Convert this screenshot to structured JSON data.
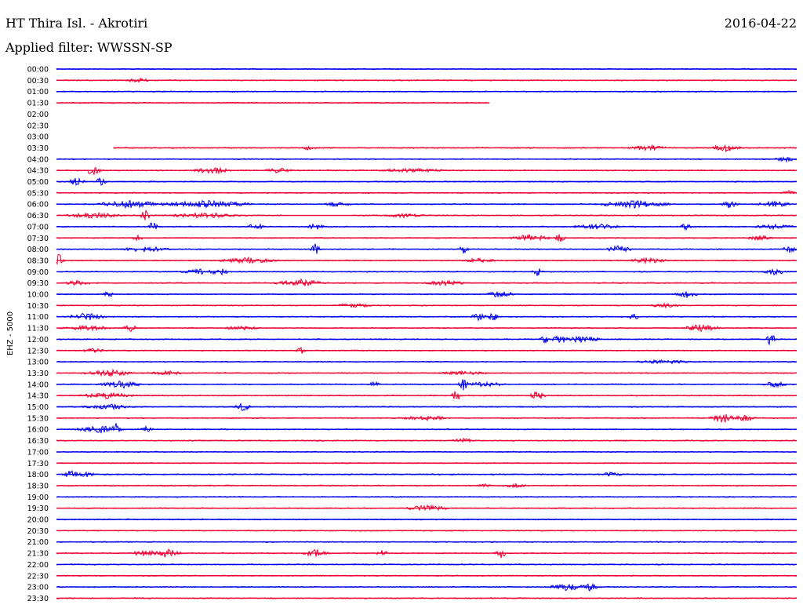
{
  "header": {
    "station": "HT Thira Isl. - Akrotiri",
    "date": "2016-04-22",
    "filter": "Applied filter: WWSSN-SP"
  },
  "chart_data": {
    "type": "line",
    "title": "HT Thira Isl. - Akrotiri",
    "ylabel": "EHZ - 5000",
    "colors": {
      "even": "#0000ee",
      "odd": "#ee0033"
    },
    "rows": [
      {
        "label": "00:00",
        "start": 0.0,
        "end": 1.0,
        "bursts": []
      },
      {
        "label": "00:30",
        "start": 0.0,
        "end": 1.0,
        "bursts": [
          [
            0.11,
            0.02,
            3
          ]
        ]
      },
      {
        "label": "01:00",
        "start": 0.0,
        "end": 1.0,
        "bursts": []
      },
      {
        "label": "01:30",
        "start": 0.0,
        "end": 0.585,
        "bursts": []
      },
      {
        "label": "02:00",
        "start": 0.0,
        "end": 0.0,
        "bursts": []
      },
      {
        "label": "02:30",
        "start": 0.0,
        "end": 0.0,
        "bursts": []
      },
      {
        "label": "03:00",
        "start": 0.0,
        "end": 0.0,
        "bursts": []
      },
      {
        "label": "03:30",
        "start": 0.077,
        "end": 1.0,
        "bursts": [
          [
            0.34,
            0.01,
            3
          ],
          [
            0.8,
            0.03,
            4
          ],
          [
            0.905,
            0.02,
            6
          ]
        ]
      },
      {
        "label": "04:00",
        "start": 0.0,
        "end": 1.0,
        "bursts": [
          [
            0.985,
            0.015,
            4
          ]
        ]
      },
      {
        "label": "04:30",
        "start": 0.0,
        "end": 1.0,
        "bursts": [
          [
            0.05,
            0.008,
            9
          ],
          [
            0.21,
            0.03,
            5
          ],
          [
            0.3,
            0.02,
            4
          ],
          [
            0.48,
            0.06,
            3
          ]
        ]
      },
      {
        "label": "05:00",
        "start": 0.0,
        "end": 1.0,
        "bursts": [
          [
            0.027,
            0.01,
            6
          ],
          [
            0.06,
            0.005,
            8
          ]
        ]
      },
      {
        "label": "05:30",
        "start": 0.0,
        "end": 1.0,
        "bursts": [
          [
            0.99,
            0.01,
            4
          ]
        ]
      },
      {
        "label": "06:00",
        "start": 0.0,
        "end": 1.0,
        "bursts": [
          [
            0.1,
            0.06,
            5
          ],
          [
            0.2,
            0.08,
            5
          ],
          [
            0.38,
            0.02,
            4
          ],
          [
            0.78,
            0.06,
            5
          ],
          [
            0.91,
            0.01,
            6
          ],
          [
            0.97,
            0.03,
            4
          ]
        ]
      },
      {
        "label": "06:30",
        "start": 0.0,
        "end": 1.0,
        "bursts": [
          [
            0.05,
            0.05,
            4
          ],
          [
            0.12,
            0.005,
            8
          ],
          [
            0.2,
            0.06,
            4
          ],
          [
            0.47,
            0.04,
            3
          ]
        ],
        "gaps": [
          [
            0.305,
            0.4
          ]
        ]
      },
      {
        "label": "07:00",
        "start": 0.0,
        "end": 1.0,
        "bursts": [
          [
            0.13,
            0.005,
            7
          ],
          [
            0.27,
            0.01,
            6
          ],
          [
            0.35,
            0.01,
            5
          ],
          [
            0.73,
            0.04,
            4
          ],
          [
            0.85,
            0.005,
            7
          ],
          [
            0.97,
            0.03,
            4
          ]
        ]
      },
      {
        "label": "07:30",
        "start": 0.0,
        "end": 1.0,
        "bursts": [
          [
            0.11,
            0.005,
            5
          ],
          [
            0.64,
            0.03,
            5
          ],
          [
            0.68,
            0.005,
            6
          ],
          [
            0.95,
            0.02,
            4
          ]
        ]
      },
      {
        "label": "08:00",
        "start": 0.0,
        "end": 1.0,
        "bursts": [
          [
            0.12,
            0.04,
            4
          ],
          [
            0.35,
            0.005,
            8
          ],
          [
            0.55,
            0.005,
            6
          ],
          [
            0.76,
            0.02,
            5
          ],
          [
            0.99,
            0.01,
            5
          ]
        ]
      },
      {
        "label": "08:30",
        "start": 0.0,
        "end": 1.0,
        "bursts": [
          [
            0.003,
            0.005,
            9
          ],
          [
            0.26,
            0.05,
            4
          ],
          [
            0.57,
            0.03,
            3
          ],
          [
            0.8,
            0.03,
            4
          ]
        ]
      },
      {
        "label": "09:00",
        "start": 0.0,
        "end": 1.0,
        "bursts": [
          [
            0.2,
            0.04,
            4
          ],
          [
            0.225,
            0.005,
            7
          ],
          [
            0.65,
            0.005,
            6
          ],
          [
            0.97,
            0.02,
            4
          ]
        ]
      },
      {
        "label": "09:30",
        "start": 0.0,
        "end": 1.0,
        "bursts": [
          [
            0.03,
            0.02,
            4
          ],
          [
            0.33,
            0.04,
            5
          ],
          [
            0.525,
            0.03,
            4
          ]
        ]
      },
      {
        "label": "10:00",
        "start": 0.0,
        "end": 1.0,
        "bursts": [
          [
            0.07,
            0.005,
            5
          ],
          [
            0.6,
            0.02,
            5
          ],
          [
            0.85,
            0.02,
            5
          ]
        ]
      },
      {
        "label": "10:30",
        "start": 0.0,
        "end": 1.0,
        "bursts": [
          [
            0.4,
            0.04,
            3
          ],
          [
            0.82,
            0.03,
            3
          ]
        ]
      },
      {
        "label": "11:00",
        "start": 0.0,
        "end": 1.0,
        "bursts": [
          [
            0.04,
            0.03,
            5
          ],
          [
            0.57,
            0.01,
            5
          ],
          [
            0.59,
            0.005,
            6
          ],
          [
            0.78,
            0.005,
            5
          ]
        ]
      },
      {
        "label": "11:30",
        "start": 0.0,
        "end": 1.0,
        "bursts": [
          [
            0.04,
            0.04,
            4
          ],
          [
            0.1,
            0.01,
            5
          ],
          [
            0.25,
            0.03,
            3
          ],
          [
            0.87,
            0.03,
            5
          ]
        ]
      },
      {
        "label": "12:00",
        "start": 0.0,
        "end": 1.0,
        "bursts": [
          [
            0.66,
            0.005,
            6
          ],
          [
            0.68,
            0.01,
            8
          ],
          [
            0.71,
            0.03,
            5
          ],
          [
            0.965,
            0.005,
            9
          ]
        ]
      },
      {
        "label": "12:30",
        "start": 0.0,
        "end": 1.0,
        "bursts": [
          [
            0.05,
            0.02,
            3
          ],
          [
            0.33,
            0.005,
            5
          ]
        ]
      },
      {
        "label": "13:00",
        "start": 0.0,
        "end": 1.0,
        "bursts": [
          [
            0.82,
            0.05,
            3
          ]
        ]
      },
      {
        "label": "13:30",
        "start": 0.0,
        "end": 1.0,
        "bursts": [
          [
            0.07,
            0.04,
            5
          ],
          [
            0.15,
            0.03,
            3
          ],
          [
            0.55,
            0.04,
            3
          ]
        ]
      },
      {
        "label": "14:00",
        "start": 0.0,
        "end": 1.0,
        "bursts": [
          [
            0.09,
            0.04,
            5
          ],
          [
            0.43,
            0.005,
            5
          ],
          [
            0.55,
            0.005,
            8
          ],
          [
            0.58,
            0.03,
            4
          ],
          [
            0.97,
            0.02,
            4
          ]
        ],
        "gaps": [
          [
            0.935,
            0.945
          ]
        ]
      },
      {
        "label": "14:30",
        "start": 0.0,
        "end": 1.0,
        "bursts": [
          [
            0.07,
            0.05,
            4
          ],
          [
            0.54,
            0.005,
            8
          ],
          [
            0.65,
            0.01,
            6
          ]
        ]
      },
      {
        "label": "15:00",
        "start": 0.0,
        "end": 1.0,
        "bursts": [
          [
            0.07,
            0.04,
            4
          ],
          [
            0.25,
            0.01,
            7
          ]
        ]
      },
      {
        "label": "15:30",
        "start": 0.0,
        "end": 1.0,
        "bursts": [
          [
            0.5,
            0.05,
            3
          ],
          [
            0.9,
            0.02,
            6
          ],
          [
            0.93,
            0.02,
            4
          ]
        ]
      },
      {
        "label": "16:00",
        "start": 0.0,
        "end": 1.0,
        "bursts": [
          [
            0.06,
            0.04,
            5
          ],
          [
            0.08,
            0.005,
            9
          ],
          [
            0.12,
            0.01,
            4
          ]
        ]
      },
      {
        "label": "16:30",
        "start": 0.0,
        "end": 1.0,
        "bursts": [
          [
            0.55,
            0.02,
            3
          ]
        ]
      },
      {
        "label": "17:00",
        "start": 0.0,
        "end": 1.0,
        "bursts": []
      },
      {
        "label": "17:30",
        "start": 0.0,
        "end": 1.0,
        "bursts": []
      },
      {
        "label": "18:00",
        "start": 0.0,
        "end": 1.0,
        "bursts": [
          [
            0.02,
            0.01,
            6
          ],
          [
            0.04,
            0.01,
            5
          ],
          [
            0.75,
            0.02,
            3
          ]
        ]
      },
      {
        "label": "18:30",
        "start": 0.0,
        "end": 1.0,
        "bursts": [
          [
            0.58,
            0.01,
            4
          ],
          [
            0.62,
            0.02,
            3
          ]
        ]
      },
      {
        "label": "19:00",
        "start": 0.0,
        "end": 1.0,
        "bursts": []
      },
      {
        "label": "19:30",
        "start": 0.0,
        "end": 1.0,
        "bursts": [
          [
            0.5,
            0.04,
            4
          ]
        ]
      },
      {
        "label": "20:00",
        "start": 0.0,
        "end": 1.0,
        "bursts": []
      },
      {
        "label": "20:30",
        "start": 0.0,
        "end": 1.0,
        "bursts": []
      },
      {
        "label": "21:00",
        "start": 0.0,
        "end": 1.0,
        "bursts": []
      },
      {
        "label": "21:30",
        "start": 0.0,
        "end": 1.0,
        "bursts": [
          [
            0.12,
            0.02,
            5
          ],
          [
            0.15,
            0.02,
            6
          ],
          [
            0.35,
            0.02,
            5
          ],
          [
            0.44,
            0.01,
            4
          ],
          [
            0.6,
            0.005,
            8
          ]
        ]
      },
      {
        "label": "22:00",
        "start": 0.0,
        "end": 1.0,
        "bursts": []
      },
      {
        "label": "22:30",
        "start": 0.0,
        "end": 1.0,
        "bursts": []
      },
      {
        "label": "23:00",
        "start": 0.0,
        "end": 1.0,
        "bursts": [
          [
            0.69,
            0.03,
            5
          ],
          [
            0.72,
            0.01,
            6
          ]
        ]
      },
      {
        "label": "23:30",
        "start": 0.0,
        "end": 1.0,
        "bursts": []
      }
    ]
  }
}
